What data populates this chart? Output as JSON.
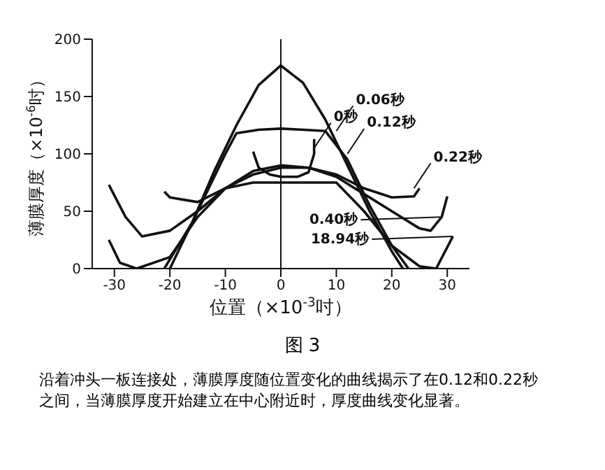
{
  "chart_data": {
    "type": "line",
    "title": "图 3",
    "xlabel": "位置（×10$^{-3}$吋）",
    "ylabel": "薄膜厚度（×10$^{-6}$吋）",
    "xlim": [
      -34,
      34
    ],
    "ylim": [
      0,
      200
    ],
    "xticks": [
      -30,
      -20,
      -10,
      0,
      10,
      20,
      30
    ],
    "yticks": [
      0,
      50,
      100,
      150,
      200
    ],
    "grid": false,
    "ref_lines": [
      {
        "axis": "x",
        "value": 0
      }
    ],
    "legend": false,
    "marker": "none",
    "line_style": "solid",
    "series": [
      {
        "color": "#111111",
        "x": [
          -21,
          -16,
          -12,
          -8,
          -4,
          0,
          4,
          8,
          12,
          16,
          20,
          22
        ],
        "values": [
          0,
          40,
          85,
          125,
          160,
          177,
          162,
          130,
          90,
          50,
          15,
          0
        ]
      },
      {
        "color": "#111111",
        "x": [
          -20,
          -15,
          -10,
          -8,
          -4,
          0,
          4,
          8,
          12,
          16,
          20,
          23
        ],
        "values": [
          0,
          50,
          100,
          118,
          121,
          122,
          121,
          120,
          95,
          55,
          20,
          0
        ]
      },
      {
        "color": "#111111",
        "x": [
          -5,
          -4,
          -2,
          0,
          3,
          5,
          6,
          6
        ],
        "values": [
          102,
          88,
          82,
          80,
          80,
          84,
          100,
          113
        ]
      },
      {
        "color": "#111111",
        "x": [
          -21,
          -20,
          -15,
          -10,
          -5,
          0,
          5,
          10,
          15,
          20,
          24,
          25
        ],
        "values": [
          67,
          62,
          58,
          70,
          82,
          88,
          88,
          82,
          70,
          62,
          63,
          70
        ]
      },
      {
        "color": "#111111",
        "x": [
          -31,
          -28,
          -25,
          -20,
          -15,
          -10,
          -5,
          0,
          5,
          10,
          15,
          20,
          25,
          27,
          29,
          30
        ],
        "values": [
          73,
          45,
          28,
          33,
          50,
          70,
          85,
          90,
          88,
          80,
          65,
          50,
          35,
          33,
          45,
          63
        ]
      },
      {
        "color": "#111111",
        "x": [
          -31,
          -29,
          -26,
          -20,
          -15,
          -10,
          -5,
          0,
          5,
          10,
          15,
          20,
          25,
          28,
          31
        ],
        "values": [
          25,
          5,
          0,
          10,
          45,
          70,
          75,
          75,
          75,
          75,
          50,
          20,
          2,
          0,
          28
        ]
      }
    ],
    "annotations": [
      {
        "text": "0秒",
        "x": 6,
        "y": 105
      },
      {
        "text": "0.06秒",
        "x": 10,
        "y": 120
      },
      {
        "text": "0.12秒",
        "x": 12,
        "y": 100
      },
      {
        "text": "0.22秒",
        "x": 24,
        "y": 70
      },
      {
        "text": "0.40秒",
        "x": 29,
        "y": 45
      },
      {
        "text": "18.94秒",
        "x": 31,
        "y": 28
      },
      "沿着冲头一板连接处，薄膜厚度随位置变化的曲线揭示了在0.12和0.22秒之间，当薄膜厚度开始建立在中心附近时，厚度曲线变化显著。"
    ]
  }
}
